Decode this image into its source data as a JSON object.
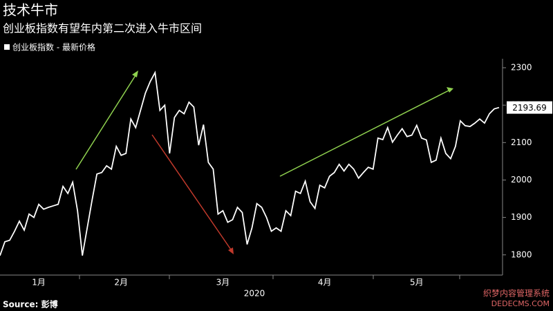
{
  "chart_data": {
    "type": "line",
    "title": "技术牛市",
    "subtitle": "创业板指数有望年内第二次进入牛市区间",
    "source": "Source: 彭博",
    "xlabel": "2020",
    "watermark": [
      "织梦内容管理系统",
      "DEDECMS.COM"
    ],
    "categories": [
      null,
      null,
      null,
      null,
      null,
      null,
      null,
      null,
      "1月",
      null,
      null,
      null,
      null,
      null,
      null,
      null,
      null,
      null,
      null,
      null,
      null,
      null,
      null,
      null,
      null,
      "2月",
      null,
      null,
      null,
      null,
      null,
      null,
      null,
      null,
      null,
      null,
      null,
      null,
      null,
      null,
      null,
      null,
      null,
      null,
      null,
      null,
      "3月",
      null,
      null,
      null,
      null,
      null,
      null,
      null,
      null,
      null,
      null,
      null,
      null,
      null,
      null,
      null,
      null,
      null,
      null,
      null,
      null,
      "4月",
      null,
      null,
      null,
      null,
      null,
      null,
      null,
      null,
      null,
      null,
      null,
      null,
      null,
      null,
      null,
      null,
      null,
      null,
      "5月",
      null,
      null,
      null,
      null,
      null,
      null,
      null,
      null,
      null,
      null,
      null,
      null,
      null,
      null,
      null,
      null,
      null
    ],
    "series": [
      {
        "name": "创业板指数 - 最新价格",
        "color": "#ffffff",
        "values": [
          1798,
          1835,
          1839,
          1863,
          1890,
          1866,
          1909,
          1900,
          1935,
          1922,
          1927,
          1931,
          1935,
          1983,
          1964,
          1994,
          1918,
          1798,
          1872,
          1946,
          2016,
          2020,
          2038,
          2029,
          2090,
          2066,
          2071,
          2163,
          2140,
          2186,
          2232,
          2263,
          2287,
          2186,
          2200,
          2071,
          2167,
          2186,
          2177,
          2208,
          2195,
          2093,
          2148,
          2047,
          2029,
          1909,
          1918,
          1887,
          1894,
          1927,
          1913,
          1828,
          1872,
          1937,
          1927,
          1900,
          1863,
          1872,
          1863,
          1918,
          1905,
          1970,
          1964,
          1997,
          1942,
          1924,
          1986,
          1979,
          2010,
          2020,
          2042,
          2024,
          2042,
          2029,
          2005,
          2020,
          2034,
          2029,
          2112,
          2108,
          2140,
          2101,
          2120,
          2137,
          2116,
          2120,
          2146,
          2112,
          2107,
          2047,
          2053,
          2112,
          2071,
          2057,
          2090,
          2158,
          2145,
          2143,
          2152,
          2163,
          2152,
          2177,
          2190,
          2193.69
        ]
      }
    ],
    "ylim": [
      1746,
      2324
    ],
    "yticks": [
      1800,
      1900,
      2000,
      2100,
      2200,
      2300
    ],
    "grid": false
  }
}
